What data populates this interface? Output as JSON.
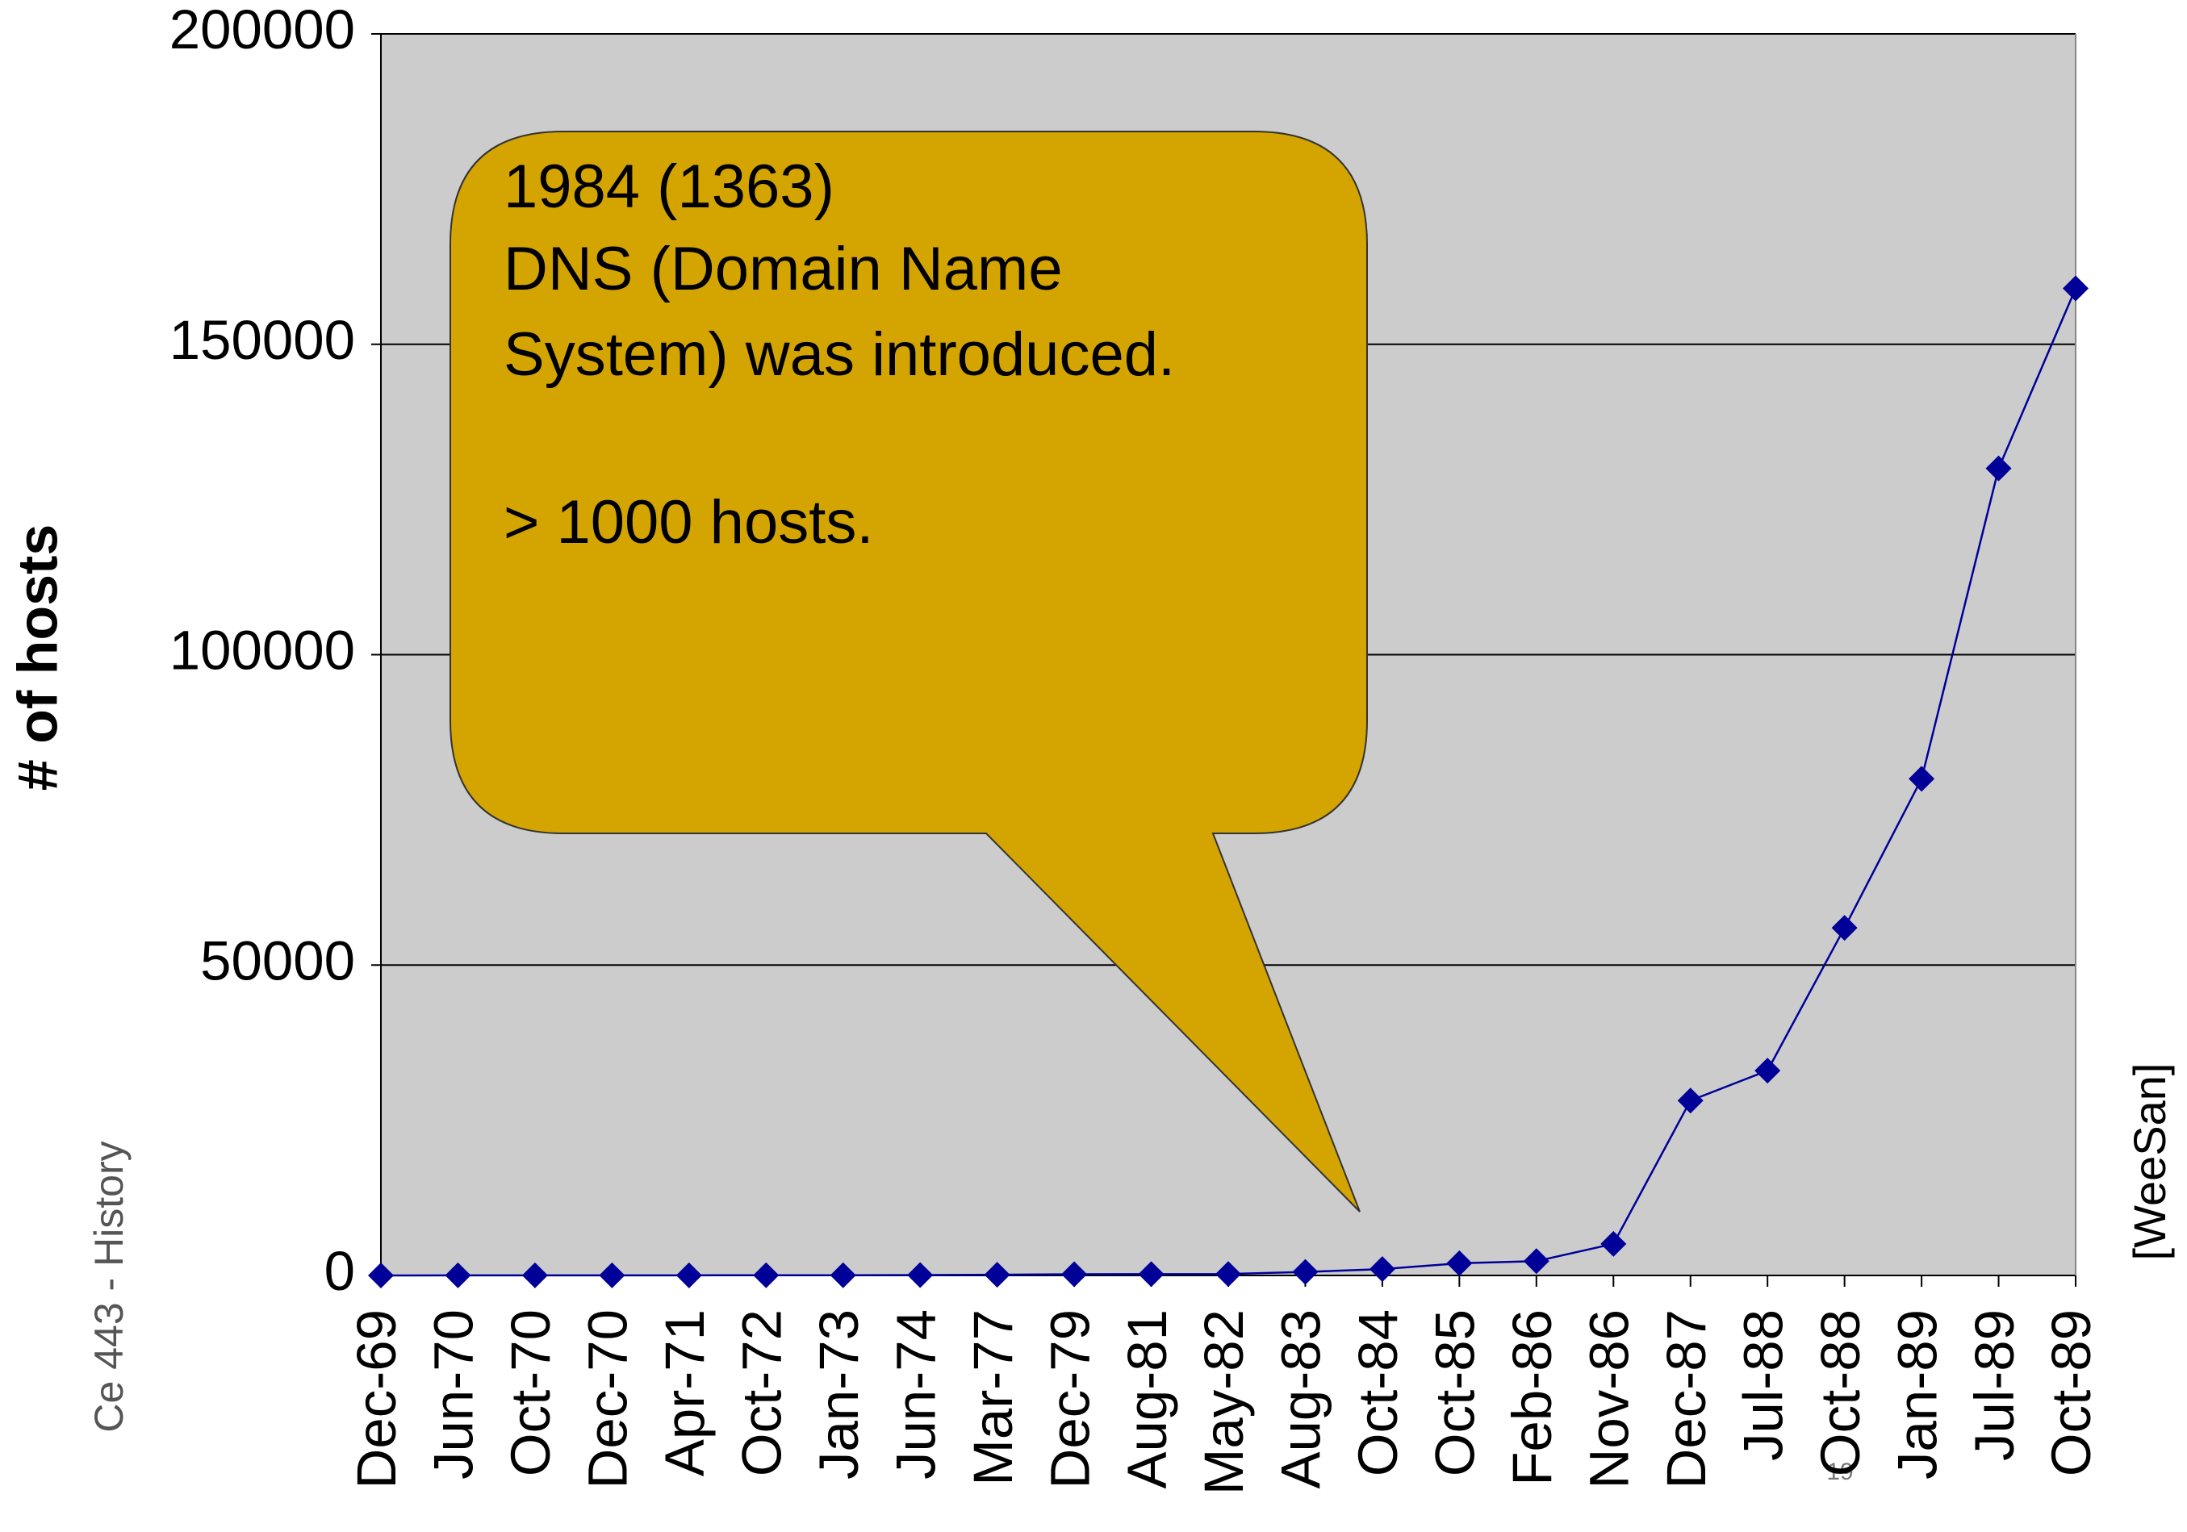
{
  "chart_data": {
    "type": "line",
    "y_label": "# of hosts",
    "categories": [
      "Dec-69",
      "Jun-70",
      "Oct-70",
      "Dec-70",
      "Apr-71",
      "Oct-72",
      "Jan-73",
      "Jun-74",
      "Mar-77",
      "Dec-79",
      "Aug-81",
      "May-82",
      "Aug-83",
      "Oct-84",
      "Oct-85",
      "Feb-86",
      "Nov-86",
      "Dec-87",
      "Jul-88",
      "Oct-88",
      "Jan-89",
      "Jul-89",
      "Oct-89"
    ],
    "series": [
      {
        "name": "hosts",
        "color": "#000099",
        "values": [
          4,
          9,
          11,
          13,
          23,
          31,
          35,
          62,
          111,
          188,
          213,
          235,
          562,
          1024,
          1961,
          2308,
          5089,
          28174,
          33000,
          56000,
          80000,
          130000,
          159000
        ]
      }
    ],
    "ylim": [
      0,
      200000
    ],
    "yticks": [
      0,
      50000,
      100000,
      150000,
      200000
    ],
    "grid": true,
    "plot_color": "#cccccc",
    "annotation": {
      "lines": [
        "1984 (1363)",
        "DNS (Domain Name",
        "System) was introduced.",
        "> 1000 hosts."
      ],
      "color": "#d4a500"
    }
  },
  "footer": {
    "left": "Ce 443 - History",
    "right": "[WeeSan]",
    "page": "19"
  }
}
